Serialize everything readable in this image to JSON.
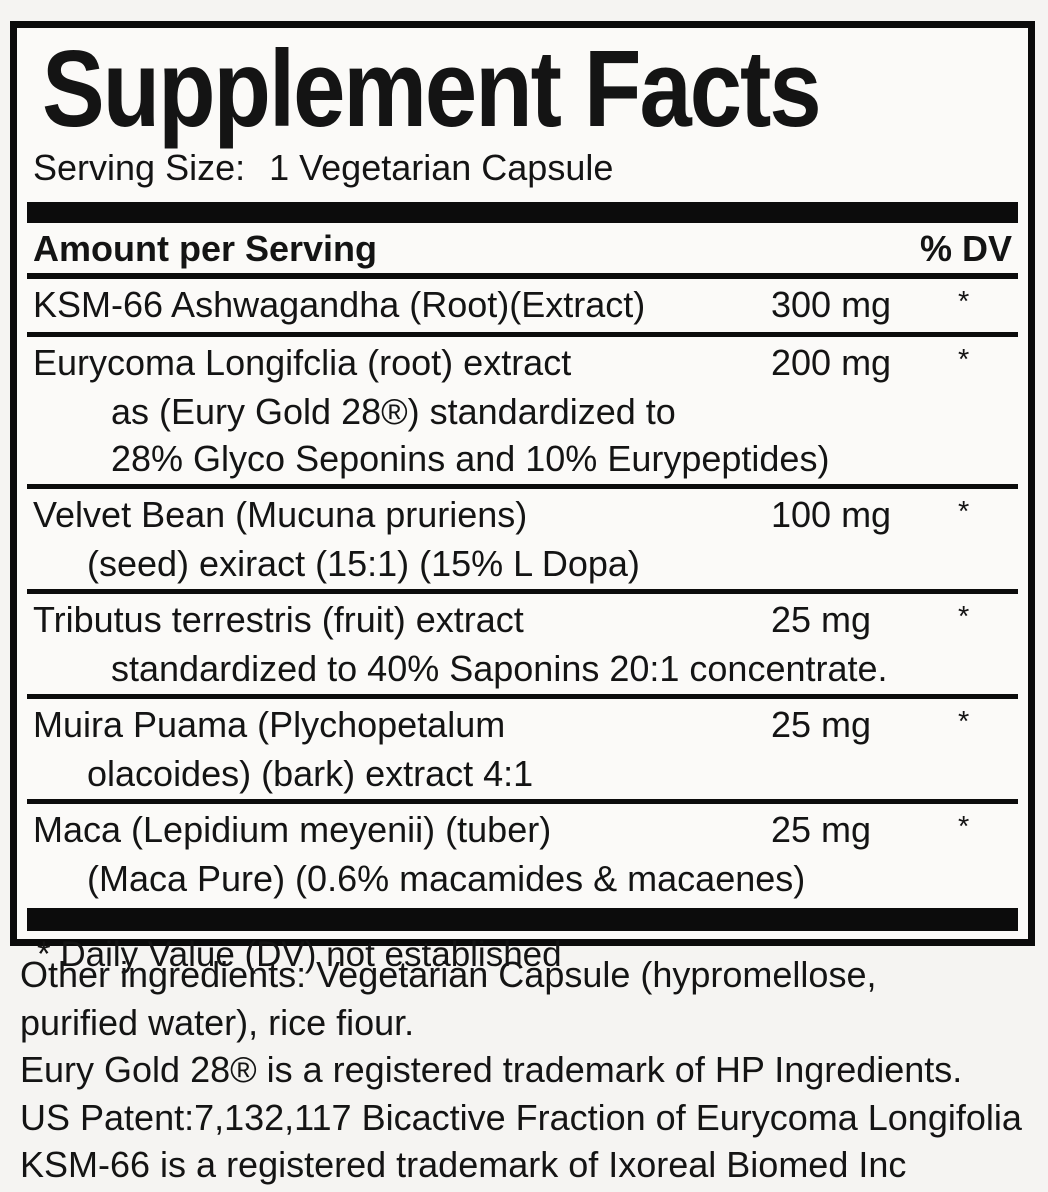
{
  "label": {
    "title": "Supplement Facts",
    "serving_size_label": "Serving Size:",
    "serving_size_value": "1 Vegetarian Capsule",
    "header": {
      "amount": "Amount per Serving",
      "dv": "% DV"
    },
    "rows": [
      {
        "name": "KSM-66 Ashwagandha (Root)(Extract)",
        "amount": "300 mg",
        "dv": "*",
        "sublines": []
      },
      {
        "name": "Eurycoma Longifclia (root) extract",
        "amount": "200 mg",
        "dv": "*",
        "sublines": [
          "as (Eury Gold 28®) standardized to",
          "28% Glyco Seponins and 10% Eurypeptides)"
        ]
      },
      {
        "name": "Velvet Bean (Mucuna pruriens)",
        "amount": "100 mg",
        "dv": "*",
        "sublines": [
          "(seed) exiract (15:1) (15% L Dopa)"
        ]
      },
      {
        "name": "Tributus terrestris (fruit) extract",
        "amount": "25 mg",
        "dv": "*",
        "sublines": [
          "standardized to 40% Saponins 20:1 concentrate."
        ]
      },
      {
        "name": "Muira Puama (Plychopetalum",
        "amount": "25 mg",
        "dv": "*",
        "sublines": [
          "olacoides) (bark) extract 4:1"
        ]
      },
      {
        "name": "Maca (Lepidium meyenii) (tuber)",
        "amount": "25 mg",
        "dv": "*",
        "sublines": [
          "(Maca Pure) (0.6% macamides & macaenes)"
        ]
      }
    ],
    "footnote": "* Daily Value (DV) not established",
    "other_lines": [
      "Other ingredients: Vegetarian Capsule (hypromellose,",
      "purified water), rice fiour.",
      "Eury Gold 28® is a registered trademark of HP Ingredients.",
      "US Patent:7,132,117 Bicactive Fraction of Eurycoma Longifolia",
      "KSM-66 is a registered trademark of Ixoreal Biomed Inc"
    ],
    "colors": {
      "ink": "#141414",
      "rule": "#0c0c0c",
      "panel_bg": "#fbfaf8",
      "page_bg": "#f5f4f2"
    }
  }
}
